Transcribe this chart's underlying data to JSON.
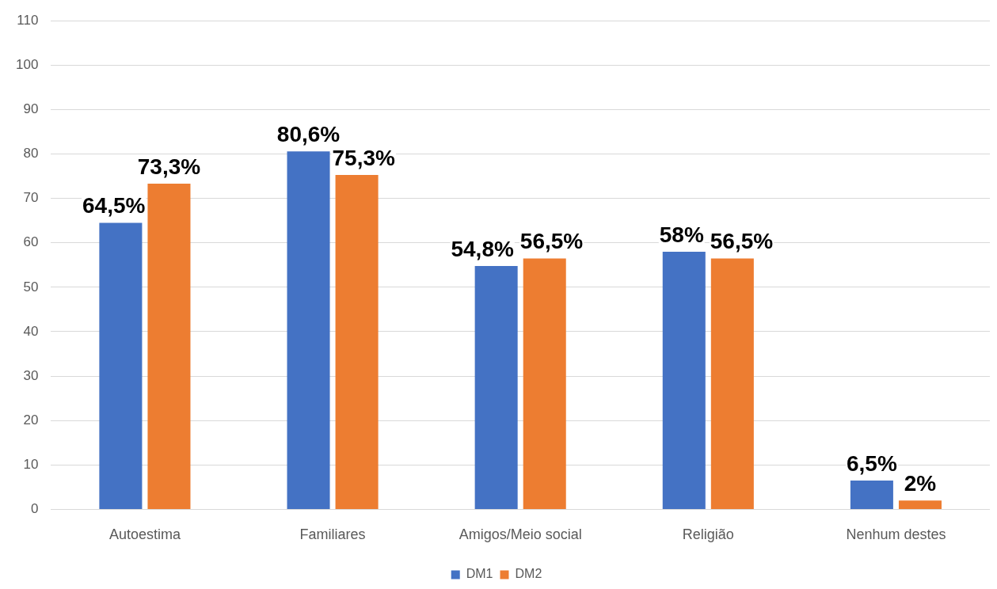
{
  "chart_data": {
    "type": "bar",
    "categories": [
      "Autoestima",
      "Familiares",
      "Amigos/Meio social",
      "Religião",
      "Nenhum destes"
    ],
    "series": [
      {
        "name": "DM1",
        "color": "#4472c4",
        "values": [
          64.5,
          80.6,
          54.8,
          58,
          6.5
        ],
        "value_labels": [
          "64,5%",
          "80,6%",
          "54,8%",
          "58%",
          "6,5%"
        ]
      },
      {
        "name": "DM2",
        "color": "#ed7d31",
        "values": [
          73.3,
          75.3,
          56.5,
          56.5,
          2
        ],
        "value_labels": [
          "73,3%",
          "75,3%",
          "56,5%",
          "56,5%",
          "2%"
        ]
      }
    ],
    "ylim": [
      0,
      110
    ],
    "yticks": [
      0,
      10,
      20,
      30,
      40,
      50,
      60,
      70,
      80,
      90,
      100,
      110
    ],
    "grid": "y",
    "legend": "bottom"
  }
}
